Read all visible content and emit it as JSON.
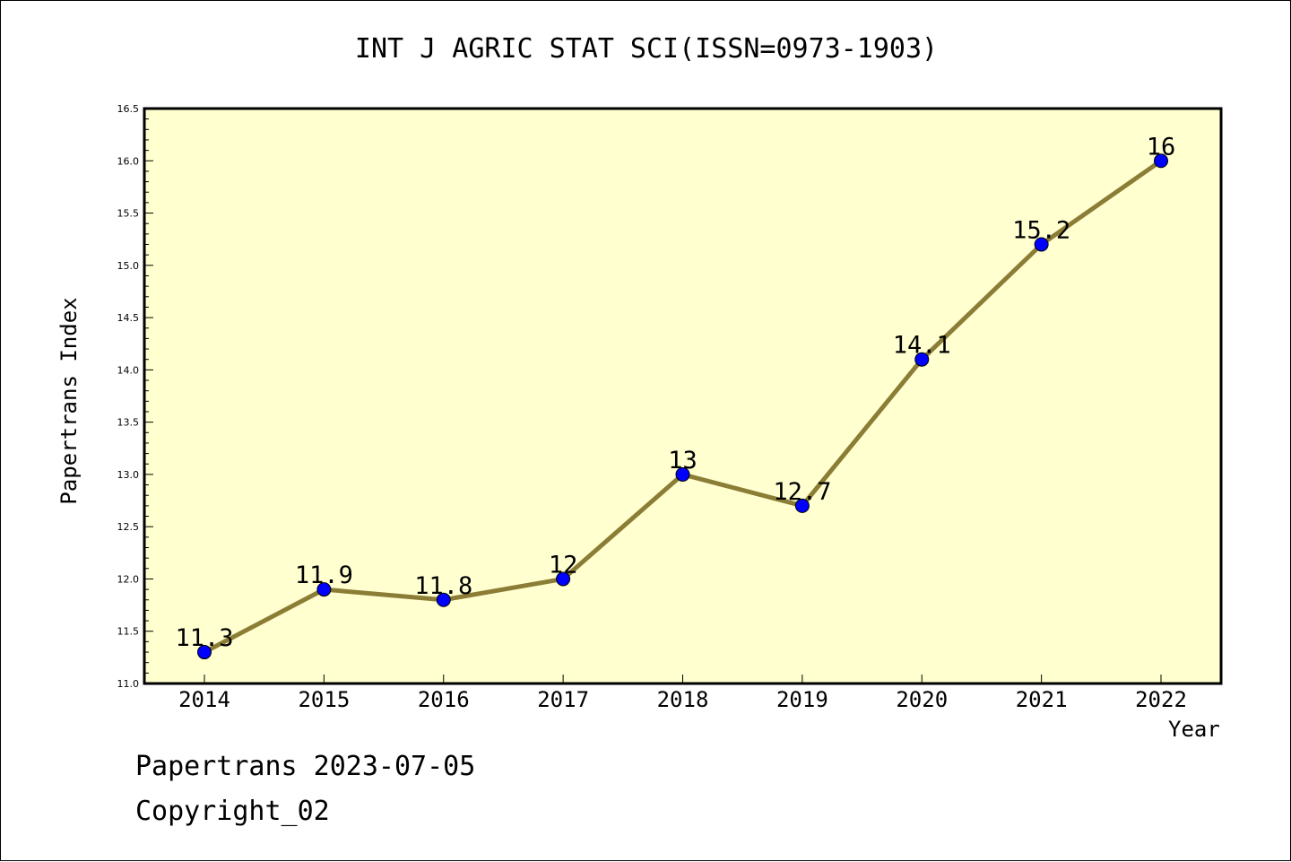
{
  "chart_data": {
    "type": "line",
    "title": "INT J AGRIC STAT SCI(ISSN=0973-1903)",
    "xlabel": "Year",
    "ylabel": "Papertrans Index",
    "categories": [
      "2014",
      "2015",
      "2016",
      "2017",
      "2018",
      "2019",
      "2020",
      "2021",
      "2022"
    ],
    "values": [
      11.3,
      11.9,
      11.8,
      12.0,
      13.0,
      12.7,
      14.1,
      15.2,
      16.0
    ],
    "data_labels": [
      "11.3",
      "11.9",
      "11.8",
      "12",
      "13",
      "12.7",
      "14.1",
      "15.2",
      "16"
    ],
    "ylim": [
      11.0,
      16.5
    ],
    "yticks": [
      "11.0",
      "11.5",
      "12.0",
      "12.5",
      "13.0",
      "13.5",
      "14.0",
      "14.5",
      "15.0",
      "15.5",
      "16.0",
      "16.5"
    ],
    "grid": false,
    "colors": {
      "plot_background": "#ffffd0",
      "line": "#8b7d35",
      "marker": "#0000ff"
    }
  },
  "footer": {
    "line1": "Papertrans 2023-07-05",
    "line2": "Copyright_02"
  }
}
